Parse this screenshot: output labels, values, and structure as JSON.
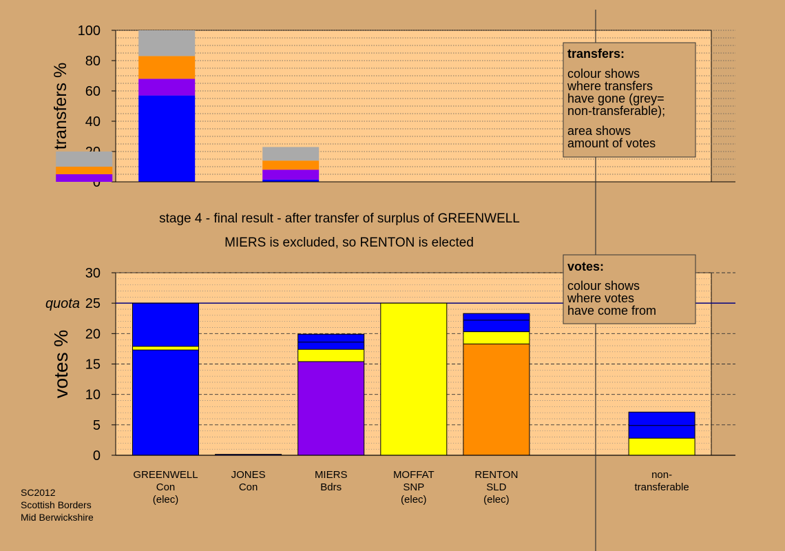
{
  "colors": {
    "background": "#d4a874",
    "plot_background": "#ffcc8f",
    "blue": "#0000ff",
    "purple": "#8800ee",
    "orange": "#ff8c00",
    "yellow": "#ffff00",
    "grey": "#aaaaaa"
  },
  "chart_data": [
    {
      "id": "transfers",
      "type": "bar",
      "stacked": true,
      "ylabel": "transfers %",
      "ylim": [
        0,
        100
      ],
      "yticks": [
        0,
        20,
        40,
        60,
        80,
        100
      ],
      "grid": true,
      "bars": [
        {
          "position": 1.0,
          "segments": [
            {
              "color": "purple",
              "value": 5
            },
            {
              "color": "orange",
              "value": 5
            },
            {
              "color": "grey",
              "value": 10
            }
          ]
        },
        {
          "position": 2.0,
          "segments": [
            {
              "color": "blue",
              "value": 57
            },
            {
              "color": "purple",
              "value": 11
            },
            {
              "color": "orange",
              "value": 15
            },
            {
              "color": "grey",
              "value": 17
            }
          ]
        },
        {
          "position": 3.5,
          "segments": [
            {
              "color": "blue",
              "value": 1.5
            },
            {
              "color": "purple",
              "value": 6.5
            },
            {
              "color": "orange",
              "value": 6
            },
            {
              "color": "grey",
              "value": 9
            }
          ]
        }
      ]
    },
    {
      "id": "votes",
      "type": "bar",
      "stacked": true,
      "ylabel": "votes %",
      "ylim": [
        0,
        30
      ],
      "yticks": [
        0,
        5,
        10,
        15,
        20,
        25,
        30
      ],
      "quota": 25,
      "quota_label": "quota",
      "grid": true,
      "categories": [
        [
          "GREENWELL",
          "Con",
          "(elec)"
        ],
        [
          "JONES",
          "Con"
        ],
        [
          "MIERS",
          "Bdrs"
        ],
        [
          "MOFFAT",
          "SNP",
          "(elec)"
        ],
        [
          "RENTON",
          "SLD",
          "(elec)"
        ],
        [
          "non-",
          "transferable"
        ]
      ],
      "bars": [
        {
          "position": 1,
          "segments": [
            {
              "color": "blue",
              "value": 17.3
            },
            {
              "color": "yellow",
              "value": 0.6
            },
            {
              "color": "blue",
              "value": 7.1
            }
          ],
          "dividers": [
            17.3,
            17.9
          ]
        },
        {
          "position": 2,
          "segments": [
            {
              "color": "blue",
              "value": 0.15
            }
          ],
          "dividers": []
        },
        {
          "position": 3,
          "segments": [
            {
              "color": "purple",
              "value": 15.4
            },
            {
              "color": "yellow",
              "value": 2.0
            },
            {
              "color": "blue",
              "value": 2.5
            }
          ],
          "dividers": [
            15.4,
            17.4,
            18.6
          ]
        },
        {
          "position": 4,
          "segments": [
            {
              "color": "yellow",
              "value": 25.0
            }
          ],
          "dividers": []
        },
        {
          "position": 5,
          "segments": [
            {
              "color": "orange",
              "value": 18.3
            },
            {
              "color": "yellow",
              "value": 2.0
            },
            {
              "color": "blue",
              "value": 3.0
            }
          ],
          "dividers": [
            18.3,
            20.3,
            22.2
          ]
        },
        {
          "position": 7,
          "segments": [
            {
              "color": "yellow",
              "value": 2.8
            },
            {
              "color": "blue",
              "value": 4.3
            }
          ],
          "dividers": [
            2.8,
            4.9
          ]
        }
      ]
    }
  ],
  "stage_lines": [
    "stage 4 - final result - after transfer of surplus of GREENWELL",
    "MIERS is excluded, so RENTON is elected"
  ],
  "transfers_legend": {
    "heading": "transfers:",
    "lines1": [
      "colour shows",
      "where transfers",
      "have gone (grey=",
      "non-transferable);"
    ],
    "lines2": [
      "area shows",
      "amount of votes"
    ]
  },
  "votes_legend": {
    "heading": "votes:",
    "lines": [
      "colour shows",
      "where votes",
      "have come from"
    ]
  },
  "footer": {
    "line1": "SC2012",
    "line2": "Scottish Borders",
    "line3": "Mid Berwickshire"
  }
}
